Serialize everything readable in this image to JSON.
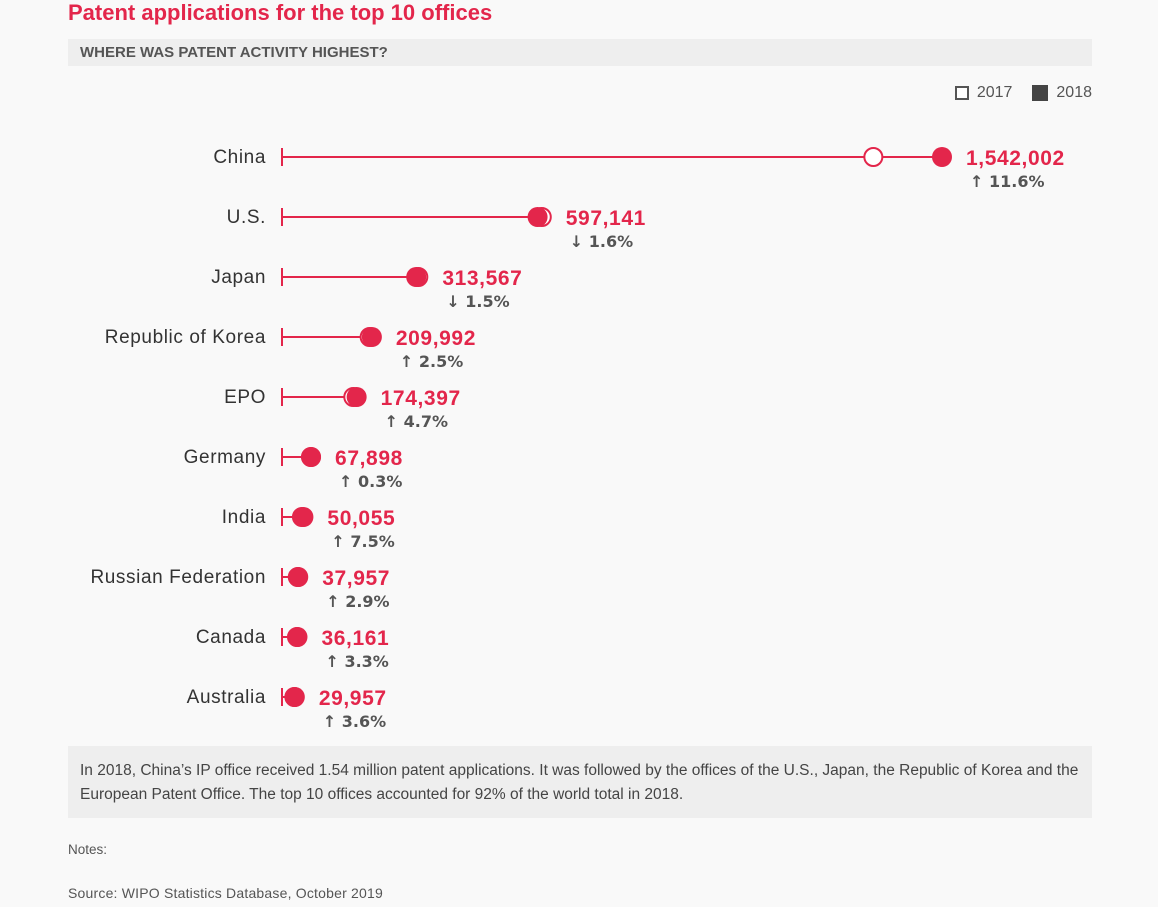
{
  "header": {
    "title": "Patent applications for the top 10 offices",
    "subtitle": "WHERE WAS PATENT ACTIVITY HIGHEST?"
  },
  "legend": {
    "label_2017": "2017",
    "label_2018": "2018"
  },
  "colors": {
    "accent": "#e3264b",
    "text": "#555555",
    "panel": "#eeeeee"
  },
  "chart_data": {
    "type": "dot",
    "title": "Patent applications for the top 10 offices",
    "subtitle": "WHERE WAS PATENT ACTIVITY HIGHEST?",
    "xlim": [
      0,
      1542002
    ],
    "categories": [
      "China",
      "U.S.",
      "Japan",
      "Republic of Korea",
      "EPO",
      "Germany",
      "India",
      "Russian Federation",
      "Canada",
      "Australia"
    ],
    "series": [
      {
        "name": "2017",
        "values": [
          1381594,
          606956,
          318481,
          204775,
          166585,
          67712,
          46582,
          36883,
          35022,
          28906
        ]
      },
      {
        "name": "2018",
        "values": [
          1542002,
          597141,
          313567,
          209992,
          174397,
          67898,
          50055,
          37957,
          36161,
          29957
        ]
      }
    ],
    "value_labels": [
      "1,542,002",
      "597,141",
      "313,567",
      "209,992",
      "174,397",
      "67,898",
      "50,055",
      "37,957",
      "36,161",
      "29,957"
    ],
    "change_labels": [
      "11.6%",
      "1.6%",
      "1.5%",
      "2.5%",
      "4.7%",
      "0.3%",
      "7.5%",
      "2.9%",
      "3.3%",
      "3.6%"
    ],
    "change_direction": [
      "up",
      "down",
      "down",
      "up",
      "up",
      "up",
      "up",
      "up",
      "up",
      "up"
    ],
    "legend_position": "top-right",
    "grid": false
  },
  "footer": {
    "summary": "In 2018, China’s IP office received 1.54 million patent applications. It was followed by the offices of the U.S., Japan, the Republic of Korea and the European Patent Office. The top 10 offices accounted for 92% of the world total in 2018.",
    "notes": "Notes:",
    "source": "Source: WIPO Statistics Database, October 2019"
  }
}
